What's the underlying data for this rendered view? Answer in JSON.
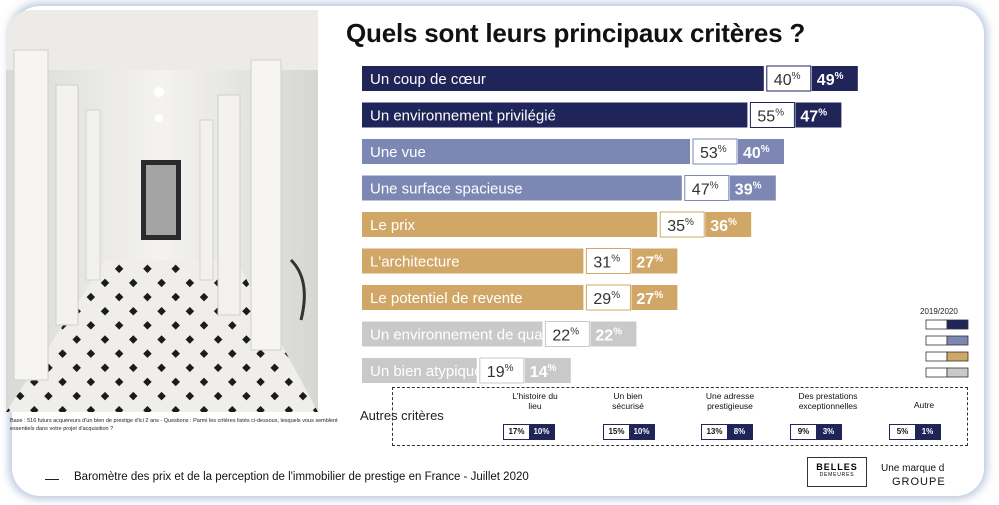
{
  "slide": {
    "title": "Quels sont leurs principaux critères  ?",
    "base_note": "Base : 516 futurs acquéreurs d'un bien de prestige d'ici 2 ans - Questions : Parmi les critères listés ci-dessous, lesquels vous semblent essentiels dans votre projet d'acquisition ?",
    "legend_year": "2019/2020",
    "footer": "Baromètre des prix et de la perception de l'immobilier de prestige en France - Juillet 2020",
    "logo_brand": "BELLES",
    "logo_sub": "DEMEURES",
    "logo_group_label": "Une marque d",
    "logo_group_name": "GROUPE"
  },
  "chart_data": {
    "type": "bar",
    "orientation": "horizontal",
    "title": "Quels sont leurs principaux critères  ?",
    "categories": [
      "Un coup de cœur",
      "Un environnement privilégié",
      "Une vue",
      "Une surface spacieuse",
      "Le prix",
      "L'architecture",
      "Le potentiel de revente",
      "Un environnement de qualité",
      "Un bien atypique"
    ],
    "series": [
      {
        "name": "2019",
        "values": [
          40,
          55,
          53,
          47,
          35,
          31,
          29,
          22,
          19
        ]
      },
      {
        "name": "2020",
        "values": [
          49,
          47,
          40,
          39,
          36,
          27,
          27,
          22,
          14
        ]
      }
    ],
    "bar_colors": [
      "#1f2559",
      "#1f2559",
      "#7c87b4",
      "#7c87b4",
      "#d0a766",
      "#d0a766",
      "#d0a766",
      "#c9c9c9",
      "#c9c9c9"
    ],
    "unit": "%",
    "legend": {
      "label": "2019/2020",
      "position": "right"
    },
    "autres_criteres": {
      "label": "Autres critères",
      "items": [
        {
          "name": "L'histoire du lieu",
          "v2019": "17%",
          "v2020": "10%"
        },
        {
          "name": "Un bien sécurisé",
          "v2019": "15%",
          "v2020": "10%"
        },
        {
          "name": "Une adresse prestigieuse",
          "v2019": "13%",
          "v2020": "8%"
        },
        {
          "name": "Des prestations exceptionnelles",
          "v2019": "9%",
          "v2020": "3%"
        },
        {
          "name": "Autre",
          "v2019": "5%",
          "v2020": "1%"
        }
      ]
    }
  }
}
